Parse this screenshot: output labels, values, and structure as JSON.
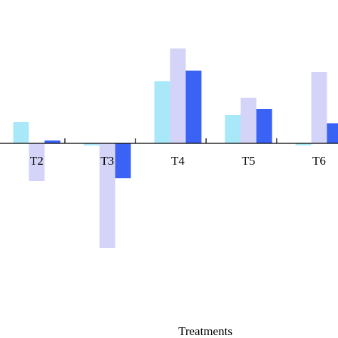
{
  "chart_data": {
    "type": "bar",
    "categories": [
      "T2",
      "T3",
      "T4",
      "T5",
      "T6"
    ],
    "series": [
      {
        "values": [
          30,
          -3,
          87,
          40,
          -3
        ],
        "color": "#a8e8f8"
      },
      {
        "values": [
          -53,
          -147,
          133,
          64,
          100
        ],
        "color": "#d4d4f8"
      },
      {
        "values": [
          4,
          -49,
          102,
          48,
          28
        ],
        "color": "#3a63f5"
      }
    ],
    "xlabel": "Treatments",
    "ylabel": "",
    "ylim": [
      -280,
      140
    ],
    "grid": false
  }
}
